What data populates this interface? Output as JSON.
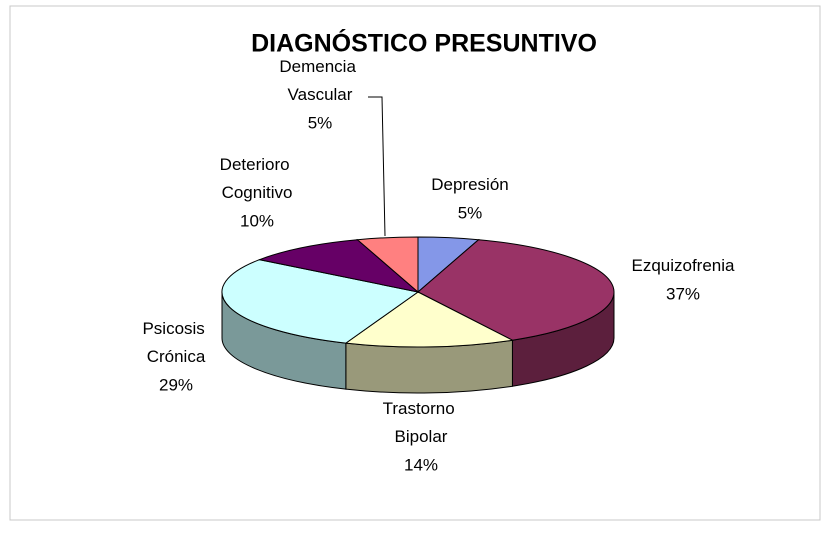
{
  "chart_data": {
    "type": "pie3d",
    "title": "DIAGNÓSTICO PRESUNTIVO",
    "categories": [
      "Depresión",
      "Ezquizofrenia",
      "Trastorno Bipolar",
      "Psicosis Crónica",
      "Deterioro Cognitivo",
      "Demencia Vascular"
    ],
    "values": [
      5,
      37,
      14,
      29,
      10,
      5
    ],
    "value_labels": [
      "5%",
      "37%",
      "14%",
      "29%",
      "10%",
      "5%"
    ],
    "colors": [
      "#8497e8",
      "#993366",
      "#ffffcc",
      "#ccffff",
      "#660066",
      "#ff8080"
    ]
  }
}
